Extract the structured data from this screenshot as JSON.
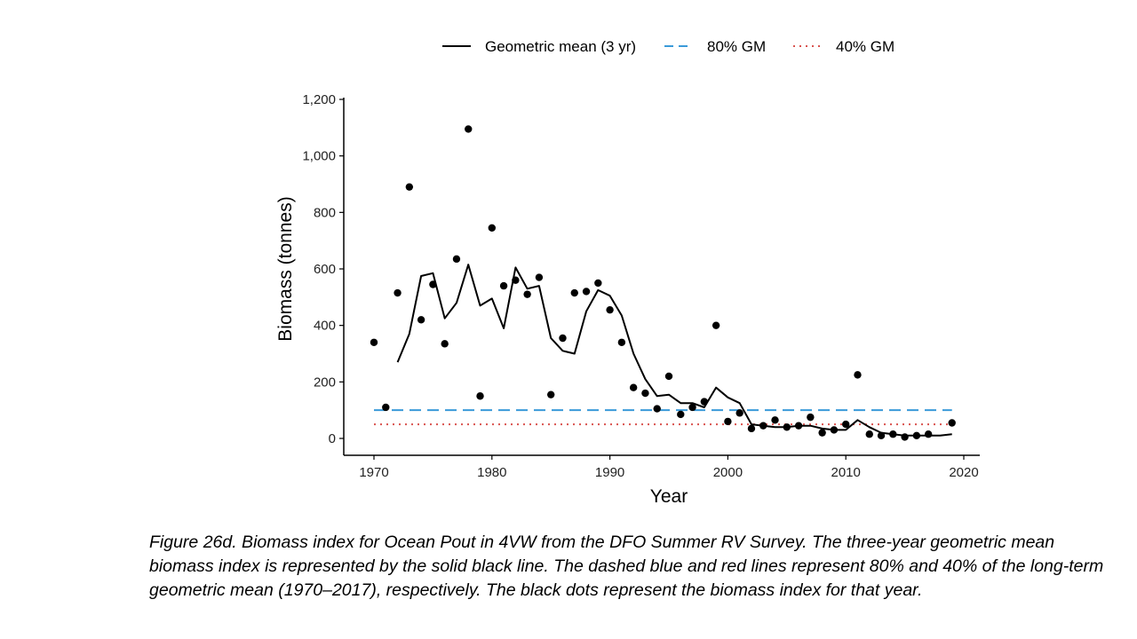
{
  "chart_data": {
    "type": "line",
    "xlabel": "Year",
    "ylabel": "Biomass (tonnes)",
    "xlim": [
      1970,
      2020
    ],
    "ylim": [
      0,
      1200
    ],
    "x_ticks": [
      1970,
      1980,
      1990,
      2000,
      2010,
      2020
    ],
    "y_ticks": [
      0,
      200,
      400,
      600,
      800,
      1000,
      1200
    ],
    "y_tick_labels": [
      "0",
      "200",
      "400",
      "600",
      "800",
      "1,000",
      "1,200"
    ],
    "grid": false,
    "legend_position": "top",
    "legend": [
      {
        "label": "Geometric mean (3 yr)",
        "style": "solid",
        "color": "#000000"
      },
      {
        "label": "80% GM",
        "style": "dashed",
        "color": "#3a9ad9"
      },
      {
        "label": "40% GM",
        "style": "dotted",
        "color": "#d9534f"
      }
    ],
    "series": [
      {
        "name": "Geometric mean (3 yr)",
        "kind": "line",
        "color": "#000000",
        "x": [
          1972,
          1973,
          1974,
          1975,
          1976,
          1977,
          1978,
          1979,
          1980,
          1981,
          1982,
          1983,
          1984,
          1985,
          1986,
          1987,
          1988,
          1989,
          1990,
          1991,
          1992,
          1993,
          1994,
          1995,
          1996,
          1997,
          1998,
          1999,
          2000,
          2001,
          2002,
          2003,
          2004,
          2005,
          2006,
          2007,
          2008,
          2009,
          2010,
          2011,
          2012,
          2013,
          2014,
          2015,
          2016,
          2017,
          2018,
          2019
        ],
        "y": [
          270,
          370,
          575,
          585,
          425,
          480,
          615,
          470,
          495,
          390,
          605,
          530,
          540,
          355,
          310,
          300,
          450,
          525,
          505,
          435,
          300,
          210,
          150,
          155,
          125,
          125,
          110,
          180,
          145,
          125,
          50,
          45,
          40,
          40,
          45,
          45,
          35,
          30,
          30,
          65,
          40,
          20,
          15,
          10,
          10,
          10,
          10,
          15
        ]
      },
      {
        "name": "Biomass index",
        "kind": "scatter",
        "color": "#000000",
        "x": [
          1970,
          1971,
          1972,
          1973,
          1974,
          1975,
          1976,
          1977,
          1978,
          1979,
          1980,
          1981,
          1982,
          1983,
          1984,
          1985,
          1986,
          1987,
          1988,
          1989,
          1990,
          1991,
          1992,
          1993,
          1994,
          1995,
          1996,
          1997,
          1998,
          1999,
          2000,
          2001,
          2002,
          2003,
          2004,
          2005,
          2006,
          2007,
          2008,
          2009,
          2010,
          2011,
          2012,
          2013,
          2014,
          2015,
          2016,
          2017,
          2019
        ],
        "y": [
          340,
          110,
          515,
          890,
          420,
          545,
          335,
          635,
          1095,
          150,
          745,
          540,
          560,
          510,
          570,
          155,
          355,
          515,
          520,
          550,
          455,
          340,
          180,
          160,
          105,
          220,
          85,
          110,
          130,
          400,
          60,
          90,
          35,
          45,
          65,
          40,
          45,
          75,
          20,
          30,
          50,
          225,
          15,
          10,
          15,
          5,
          10,
          15,
          55
        ]
      },
      {
        "name": "80% GM",
        "kind": "hline",
        "color": "#3a9ad9",
        "x": [
          1970,
          2019
        ],
        "y": [
          100,
          100
        ]
      },
      {
        "name": "40% GM",
        "kind": "hline",
        "color": "#d9534f",
        "x": [
          1970,
          2019
        ],
        "y": [
          50,
          50
        ]
      }
    ]
  },
  "caption": "Figure 26d. Biomass index for Ocean Pout in 4VW from the DFO Summer RV Survey. The three-year geometric mean biomass index is represented by the solid black line. The dashed blue and red lines represent 80% and 40% of the long-term geometric mean (1970–2017), respectively. The black dots represent the biomass index for that year."
}
